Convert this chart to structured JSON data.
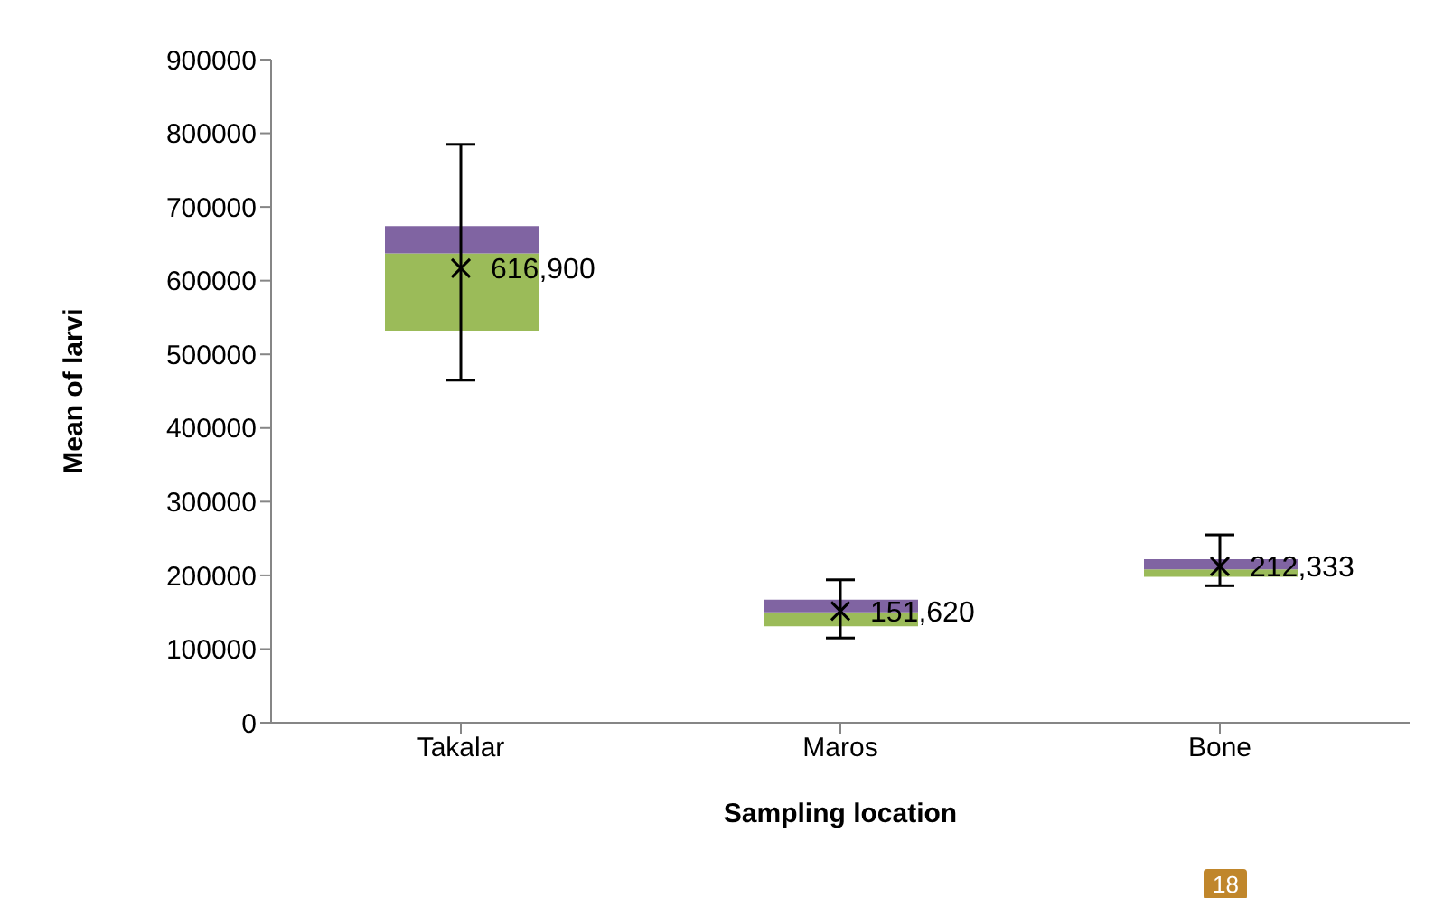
{
  "chart_data": {
    "type": "bar",
    "xlabel": "Sampling location",
    "ylabel": "Mean of larvi",
    "categories": [
      "Takalar",
      "Maros",
      "Bone"
    ],
    "series": [
      {
        "color": "#9bbb59",
        "base": [
          532000,
          131000,
          198000
        ],
        "values": [
          105000,
          19000,
          10000
        ]
      },
      {
        "color": "#8064a2",
        "base": [
          637000,
          150000,
          208000
        ],
        "values": [
          37000,
          17000,
          14000
        ]
      },
      {
        "type": "scatter",
        "color": "#000000",
        "values": [
          616900,
          151620,
          212333
        ],
        "errors": [
          [
            465000,
            785000
          ],
          [
            115000,
            194000
          ],
          [
            186000,
            255000
          ]
        ]
      }
    ],
    "ylim": [
      0,
      900000
    ],
    "yticks": [
      0,
      100000,
      200000,
      300000,
      400000,
      500000,
      600000,
      700000,
      800000,
      900000
    ],
    "marker": "cross",
    "annotations": [
      {
        "text": "616,900",
        "x": "Takalar",
        "y": 616900
      },
      {
        "text": "151,620",
        "x": "Maros",
        "y": 151620
      },
      {
        "text": "212,333",
        "x": "Bone",
        "y": 212333
      },
      "18"
    ]
  }
}
